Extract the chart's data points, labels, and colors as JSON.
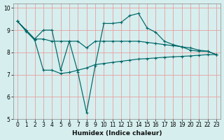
{
  "xlabel": "Humidex (Indice chaleur)",
  "ylabel": "",
  "background_color": "#d6eeee",
  "grid_color": "#e8a0a0",
  "line_color": "#006666",
  "xlim": [
    -0.5,
    23.5
  ],
  "ylim": [
    5,
    10.2
  ],
  "xticks": [
    0,
    1,
    2,
    3,
    4,
    5,
    6,
    7,
    8,
    9,
    10,
    11,
    12,
    13,
    14,
    15,
    16,
    17,
    18,
    19,
    20,
    21,
    22,
    23
  ],
  "yticks": [
    5,
    6,
    7,
    8,
    9,
    10
  ],
  "line1_x": [
    0,
    1,
    2,
    3,
    4,
    5,
    6,
    7,
    8,
    9,
    10,
    11,
    12,
    13,
    14,
    15,
    16,
    17,
    18,
    19,
    20,
    21,
    22,
    23
  ],
  "line1_y": [
    9.4,
    9.0,
    8.6,
    8.6,
    8.5,
    8.5,
    8.5,
    8.5,
    8.2,
    8.5,
    8.5,
    8.5,
    8.5,
    8.5,
    8.5,
    8.45,
    8.4,
    8.35,
    8.3,
    8.25,
    8.2,
    8.1,
    8.05,
    7.9
  ],
  "line2_x": [
    0,
    1,
    2,
    3,
    4,
    5,
    6,
    7,
    8,
    9,
    10,
    11,
    12,
    13,
    14,
    15,
    16,
    17,
    18,
    19,
    20,
    21,
    22,
    23
  ],
  "line2_y": [
    9.4,
    9.0,
    8.6,
    9.0,
    9.0,
    7.2,
    8.5,
    7.1,
    5.3,
    7.4,
    9.3,
    9.3,
    9.35,
    9.65,
    9.75,
    9.1,
    8.9,
    8.5,
    8.35,
    8.25,
    8.1,
    8.05,
    8.05,
    7.9
  ],
  "line3_x": [
    0,
    1,
    2,
    3,
    4,
    5,
    6,
    7,
    8,
    9,
    10,
    11,
    12,
    13,
    14,
    15,
    16,
    17,
    18,
    19,
    20,
    21,
    22,
    23
  ],
  "line3_y": [
    9.4,
    8.95,
    8.55,
    7.2,
    7.2,
    7.05,
    7.1,
    7.2,
    7.3,
    7.45,
    7.5,
    7.55,
    7.6,
    7.65,
    7.7,
    7.72,
    7.75,
    7.78,
    7.8,
    7.82,
    7.84,
    7.87,
    7.9,
    7.9
  ]
}
